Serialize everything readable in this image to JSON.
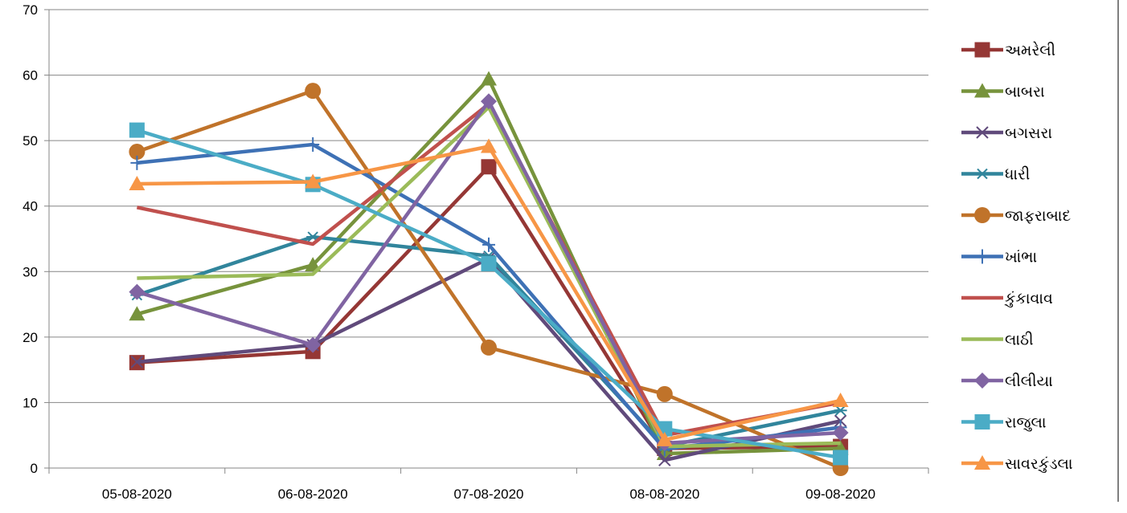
{
  "chart_data": {
    "type": "line",
    "title": "",
    "xlabel": "",
    "ylabel": "",
    "ylim": [
      0,
      70
    ],
    "yticks": [
      0,
      10,
      20,
      30,
      40,
      50,
      60,
      70
    ],
    "grid": true,
    "legend_position": "right",
    "categories": [
      "05-08-2020",
      "06-08-2020",
      "07-08-2020",
      "08-08-2020",
      "09-08-2020"
    ],
    "series": [
      {
        "name": "અમરેલી",
        "color": "#953735",
        "marker": "square",
        "values": [
          16.1,
          17.8,
          46.0,
          3.0,
          3.3
        ]
      },
      {
        "name": "બાબરા",
        "color": "#77933c",
        "marker": "triangle",
        "values": [
          23.5,
          31.0,
          59.4,
          2.2,
          3.0
        ]
      },
      {
        "name": "બગસરા",
        "color": "#604a7b",
        "marker": "x",
        "values": [
          16.2,
          18.8,
          32.0,
          1.2,
          7.2
        ]
      },
      {
        "name": "ધારી",
        "color": "#31859c",
        "marker": "star",
        "values": [
          26.4,
          35.3,
          32.4,
          3.3,
          8.8
        ]
      },
      {
        "name": "જાફરાબાદ",
        "color": "#c0732a",
        "marker": "circle",
        "values": [
          48.3,
          57.6,
          18.4,
          11.3,
          0.0
        ]
      },
      {
        "name": "ખાંભા",
        "color": "#3e71b5",
        "marker": "plus",
        "values": [
          46.6,
          49.4,
          34.1,
          2.9,
          6.2
        ]
      },
      {
        "name": "કુંકાવાવ",
        "color": "#c0504d",
        "marker": "none",
        "values": [
          39.8,
          34.2,
          55.6,
          5.0,
          10.0
        ]
      },
      {
        "name": "લાઠી",
        "color": "#9bbb59",
        "marker": "none",
        "values": [
          29.0,
          29.6,
          55.1,
          3.3,
          3.8
        ]
      },
      {
        "name": "લીલીયા",
        "color": "#8064a2",
        "marker": "diamond",
        "values": [
          26.9,
          18.8,
          56.0,
          3.8,
          5.4
        ]
      },
      {
        "name": "રાજુલા",
        "color": "#4bacc6",
        "marker": "square",
        "values": [
          51.6,
          43.3,
          31.2,
          6.0,
          1.6
        ]
      },
      {
        "name": "સાવરકુંડલા",
        "color": "#f79646",
        "marker": "triangle",
        "values": [
          43.4,
          43.7,
          49.1,
          4.3,
          10.3
        ]
      }
    ]
  }
}
